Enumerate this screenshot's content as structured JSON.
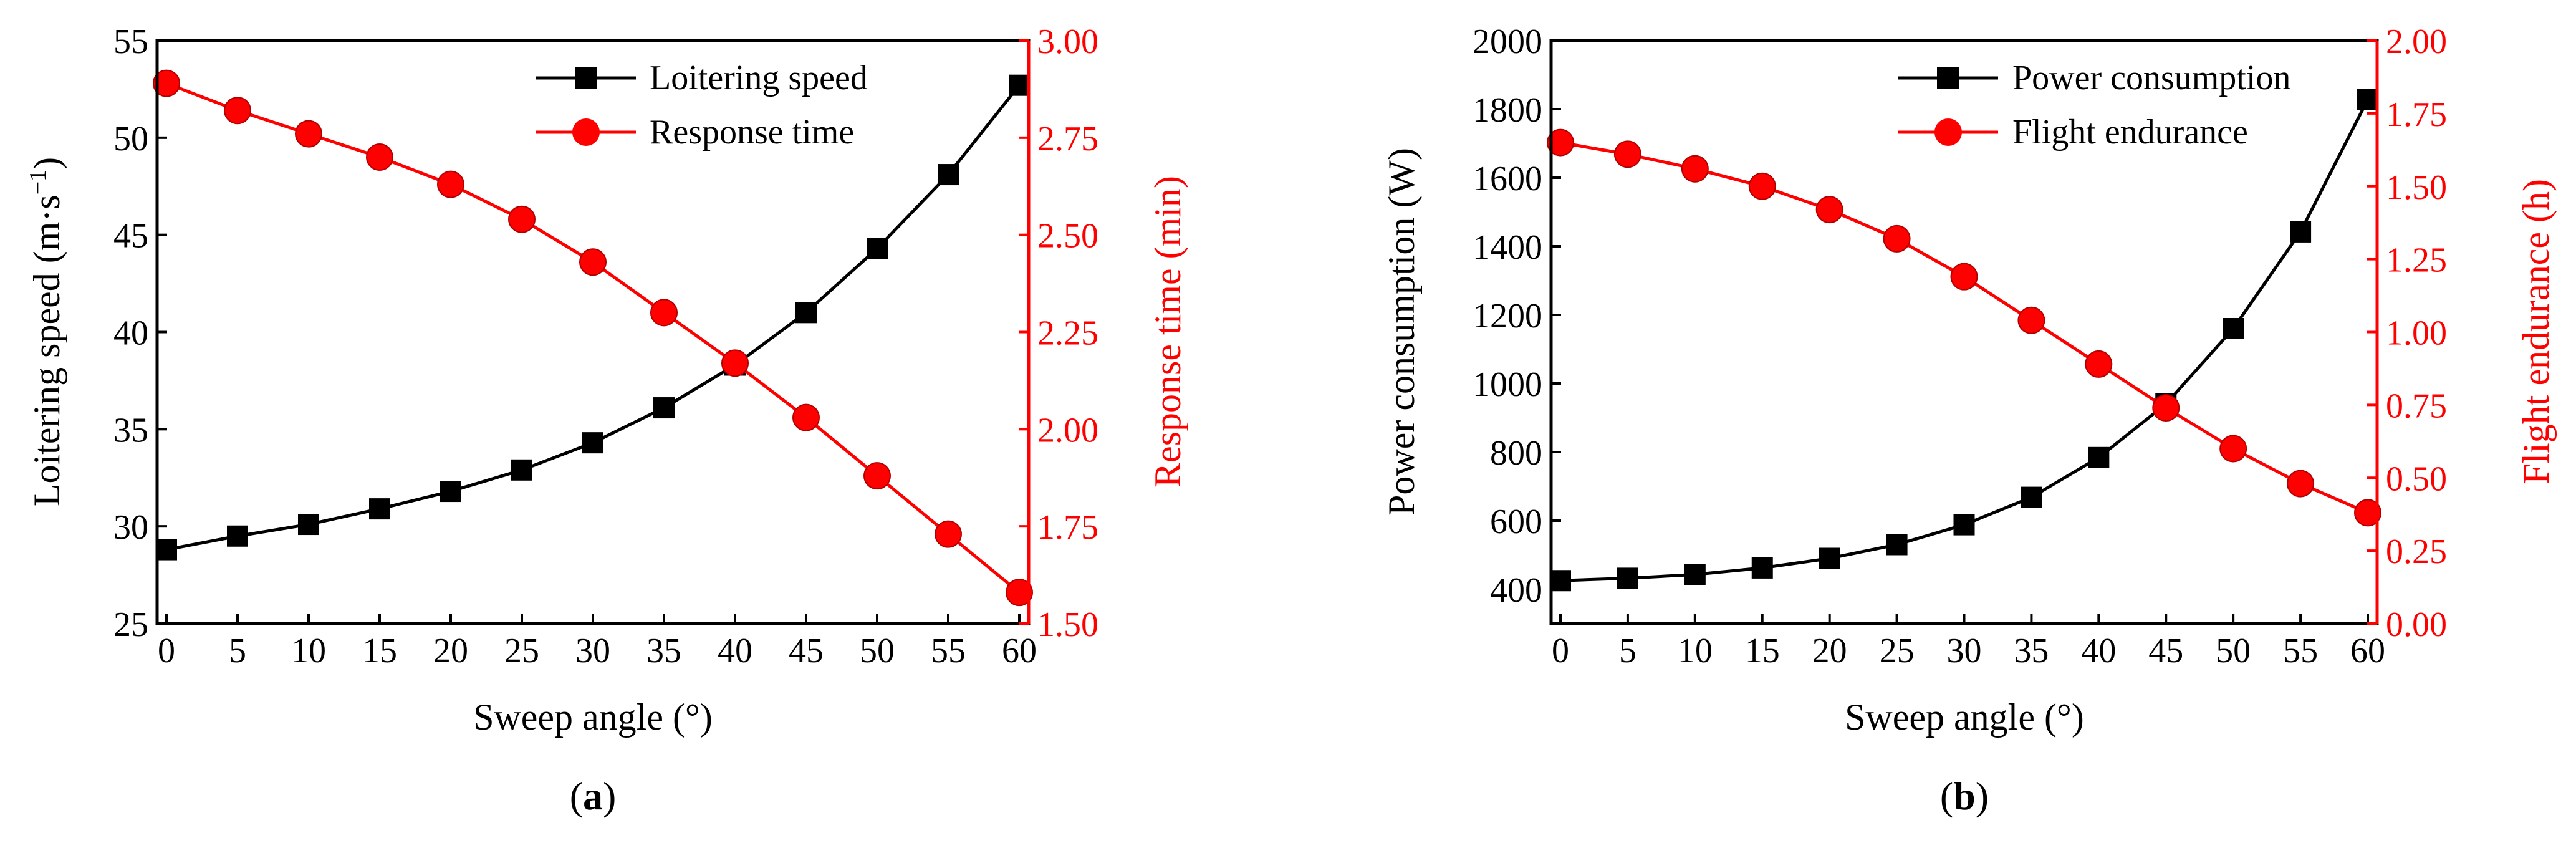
{
  "chart_data": [
    {
      "type": "line",
      "panel_label_prefix": "(",
      "panel_label": "a",
      "panel_label_suffix": ")",
      "xlabel": "Sweep angle (°)",
      "x": [
        0,
        5,
        10,
        15,
        20,
        25,
        30,
        35,
        40,
        45,
        50,
        55,
        60
      ],
      "xlim": [
        0,
        60
      ],
      "xticks": [
        "0",
        "5",
        "10",
        "15",
        "20",
        "25",
        "30",
        "35",
        "40",
        "45",
        "50",
        "55",
        "60"
      ],
      "ylabel_left": "Loitering speed (m·s",
      "ylabel_left_sup": "−1",
      "ylabel_left_end": ")",
      "ylim_left": [
        25,
        55
      ],
      "yticks_left": [
        "25",
        "30",
        "35",
        "40",
        "45",
        "50",
        "55"
      ],
      "ylabel_right": "Response time (min)",
      "ylim_right": [
        1.5,
        3.0
      ],
      "yticks_right": [
        "1.50",
        "1.75",
        "2.00",
        "2.25",
        "2.50",
        "2.75",
        "3.00"
      ],
      "series": [
        {
          "name": "Loitering speed",
          "axis": "left",
          "color": "#000000",
          "marker": "square",
          "values": [
            28.8,
            29.5,
            30.1,
            30.9,
            31.8,
            32.9,
            34.3,
            36.1,
            38.3,
            41.0,
            44.3,
            48.1,
            52.7
          ]
        },
        {
          "name": "Response time",
          "axis": "right",
          "color": "#ff0000",
          "marker": "circle",
          "values": [
            2.89,
            2.82,
            2.76,
            2.7,
            2.63,
            2.54,
            2.43,
            2.3,
            2.17,
            2.03,
            1.88,
            1.73,
            1.58
          ]
        }
      ]
    },
    {
      "type": "line",
      "panel_label_prefix": "(",
      "panel_label": "b",
      "panel_label_suffix": ")",
      "xlabel": "Sweep angle (°)",
      "x": [
        0,
        5,
        10,
        15,
        20,
        25,
        30,
        35,
        40,
        45,
        50,
        55,
        60
      ],
      "xlim": [
        0,
        60
      ],
      "xticks": [
        "0",
        "5",
        "10",
        "15",
        "20",
        "25",
        "30",
        "35",
        "40",
        "45",
        "50",
        "55",
        "60"
      ],
      "ylabel_left": "Power consumption (W)",
      "ylim_left": [
        300,
        2000
      ],
      "yticks_left_values": [
        400,
        600,
        800,
        1000,
        1200,
        1400,
        1600,
        1800,
        2000
      ],
      "yticks_left": [
        "400",
        "600",
        "800",
        "1000",
        "1200",
        "1400",
        "1600",
        "1800",
        "2000"
      ],
      "ylabel_right": "Flight endurance (h)",
      "ylim_right": [
        0,
        2.0
      ],
      "yticks_right": [
        "0.00",
        "0.25",
        "0.50",
        "0.75",
        "1.00",
        "1.25",
        "1.50",
        "1.75",
        "2.00"
      ],
      "series": [
        {
          "name": "Power consumption",
          "axis": "left",
          "color": "#000000",
          "marker": "square",
          "values": [
            425,
            432,
            443,
            462,
            490,
            530,
            588,
            668,
            784,
            940,
            1160,
            1442,
            1828
          ]
        },
        {
          "name": "Flight endurance",
          "axis": "right",
          "color": "#ff0000",
          "marker": "circle",
          "values": [
            1.65,
            1.61,
            1.56,
            1.5,
            1.42,
            1.32,
            1.19,
            1.04,
            0.89,
            0.74,
            0.6,
            0.48,
            0.38
          ]
        }
      ]
    }
  ]
}
